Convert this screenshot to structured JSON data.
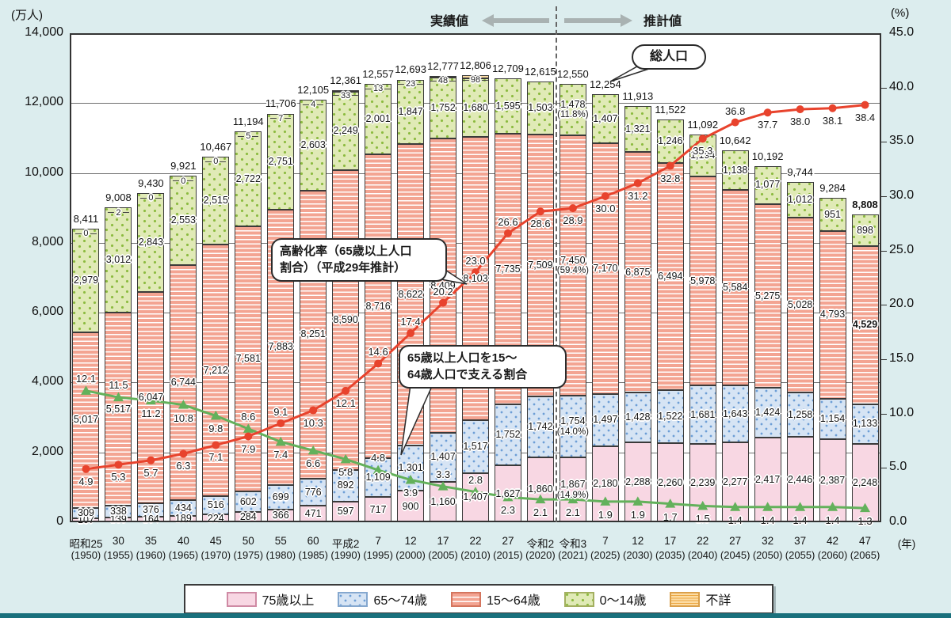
{
  "header": {
    "actual_label": "実績値",
    "projection_label": "推計値",
    "total_population_label": "総人口"
  },
  "axes": {
    "left_title": "(万人)",
    "right_title": "(%)",
    "x_unit": "(年)",
    "left_ticks": [
      "14,000",
      "12,000",
      "10,000",
      "8,000",
      "6,000",
      "4,000",
      "2,000",
      "0"
    ],
    "right_ticks": [
      "45.0",
      "40.0",
      "35.0",
      "30.0",
      "25.0",
      "20.0",
      "15.0",
      "10.0",
      "5.0",
      "0.0"
    ]
  },
  "annotations": {
    "aging_note_line1": "高齢化率（65歳以上人口",
    "aging_note_line2": "割合）（平成29年推計）",
    "support_note_line1": "65歳以上人口を15～",
    "support_note_line2": "64歳人口で支える割合"
  },
  "legend": {
    "items": [
      {
        "label": "75歳以上"
      },
      {
        "label": "65～74歳"
      },
      {
        "label": "15～64歳"
      },
      {
        "label": "0～14歳"
      },
      {
        "label": "不詳"
      }
    ]
  },
  "colors": {
    "background": "#dcedee",
    "bar_75plus": "#f8d7e3",
    "bar_65_74": "#d6e4f4",
    "bar_15_64": "#f3a492",
    "bar_0_14": "#e0eab6",
    "bar_unknown": "#fcdca4",
    "aging_rate_line": "#e8432d",
    "support_ratio_line": "#63b15b",
    "bottom_strip": "#19707c"
  },
  "chart_data": {
    "type": "bar",
    "subtype": "stacked-bar-with-lines",
    "categories_era": [
      "昭和25",
      "30",
      "35",
      "40",
      "45",
      "50",
      "55",
      "60",
      "平成2",
      "7",
      "12",
      "17",
      "22",
      "27",
      "令和2",
      "令和3",
      "7",
      "12",
      "17",
      "22",
      "27",
      "32",
      "37",
      "42",
      "47"
    ],
    "categories_year": [
      "(1950)",
      "(1955)",
      "(1960)",
      "(1965)",
      "(1970)",
      "(1975)",
      "(1980)",
      "(1985)",
      "(1990)",
      "(1995)",
      "(2000)",
      "(2005)",
      "(2010)",
      "(2015)",
      "(2020)",
      "(2021)",
      "(2025)",
      "(2030)",
      "(2035)",
      "(2040)",
      "(2045)",
      "(2050)",
      "(2055)",
      "(2060)",
      "(2065)"
    ],
    "series": [
      {
        "name": "75歳以上",
        "values": [
          107,
          139,
          164,
          189,
          224,
          284,
          366,
          471,
          597,
          717,
          900,
          1160,
          1407,
          1627,
          1860,
          1867,
          2180,
          2288,
          2260,
          2239,
          2277,
          2417,
          2446,
          2387,
          2248
        ]
      },
      {
        "name": "65～74歳",
        "values": [
          309,
          338,
          376,
          434,
          516,
          602,
          699,
          776,
          892,
          1109,
          1301,
          1407,
          1517,
          1752,
          1742,
          1754,
          1497,
          1428,
          1522,
          1681,
          1643,
          1424,
          1258,
          1154,
          1133
        ]
      },
      {
        "name": "15～64歳",
        "values": [
          5017,
          5517,
          6047,
          6744,
          7212,
          7581,
          7883,
          8251,
          8590,
          8716,
          8622,
          8409,
          8103,
          7735,
          7509,
          7450,
          7170,
          6875,
          6494,
          5978,
          5584,
          5275,
          5028,
          4793,
          4529
        ]
      },
      {
        "name": "0～14歳",
        "values": [
          2979,
          3012,
          2843,
          2553,
          2515,
          2722,
          2751,
          2603,
          2249,
          2001,
          1847,
          1752,
          1680,
          1595,
          1503,
          1478,
          1407,
          1321,
          1246,
          1194,
          1138,
          1077,
          1012,
          951,
          898
        ]
      },
      {
        "name": "不詳",
        "values": [
          0,
          2,
          0,
          0,
          0,
          5,
          7,
          4,
          33,
          13,
          23,
          48,
          98,
          null,
          null,
          null,
          null,
          null,
          null,
          null,
          null,
          null,
          null,
          null,
          null
        ]
      }
    ],
    "totals": [
      8411,
      9008,
      9430,
      9921,
      10467,
      11194,
      11706,
      12105,
      12361,
      12557,
      12693,
      12777,
      12806,
      12709,
      12615,
      12550,
      12254,
      11913,
      11522,
      11092,
      10642,
      10192,
      9744,
      9284,
      8808
    ],
    "lines": [
      {
        "name": "高齢化率（65歳以上人口割合）（平成29年推計）",
        "unit": "%",
        "values": [
          4.9,
          5.3,
          5.7,
          6.3,
          7.1,
          7.9,
          9.1,
          10.3,
          12.1,
          14.6,
          17.4,
          20.2,
          23.0,
          26.6,
          28.6,
          28.9,
          30.0,
          31.2,
          32.8,
          35.3,
          36.8,
          37.7,
          38.0,
          38.1,
          38.4
        ]
      },
      {
        "name": "65歳以上人口を15～64歳人口で支える割合",
        "unit": "人",
        "values": [
          12.1,
          11.5,
          11.2,
          10.8,
          9.8,
          8.6,
          7.4,
          6.6,
          5.8,
          4.8,
          3.9,
          3.3,
          2.8,
          2.3,
          2.1,
          2.1,
          1.9,
          1.9,
          1.7,
          1.5,
          1.4,
          1.4,
          1.4,
          1.4,
          1.3
        ]
      }
    ],
    "special_pct_labels": {
      "index": 15,
      "by_series": {
        "75歳以上": "(14.9%)",
        "65～74歳": "(14.0%)",
        "15～64歳": "(59.4%)",
        "0～14歳": "(11.8%)"
      }
    },
    "ylim_left": [
      0,
      14000
    ],
    "ylim_right": [
      0,
      45
    ],
    "grid": "horizontal, every 2000 (left axis)",
    "legend_position": "bottom",
    "divider_after_index": 14
  }
}
